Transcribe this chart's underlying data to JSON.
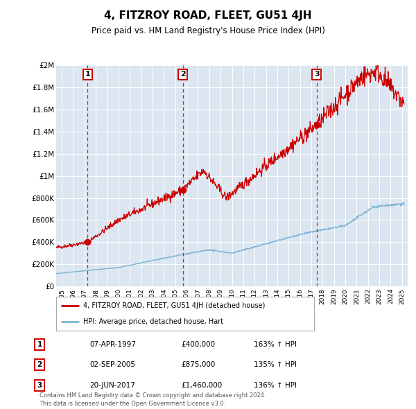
{
  "title": "4, FITZROY ROAD, FLEET, GU51 4JH",
  "subtitle": "Price paid vs. HM Land Registry's House Price Index (HPI)",
  "title_fontsize": 11,
  "subtitle_fontsize": 8.5,
  "background_color": "#ffffff",
  "plot_bg_color": "#dce6f1",
  "grid_color": "#ffffff",
  "ylim": [
    0,
    2000000
  ],
  "yticks": [
    0,
    200000,
    400000,
    600000,
    800000,
    1000000,
    1200000,
    1400000,
    1600000,
    1800000,
    2000000
  ],
  "ytick_labels": [
    "£0",
    "£200K",
    "£400K",
    "£600K",
    "£800K",
    "£1M",
    "£1.2M",
    "£1.4M",
    "£1.6M",
    "£1.8M",
    "£2M"
  ],
  "xlim_start": 1994.5,
  "xlim_end": 2025.5,
  "xtick_years": [
    1995,
    1996,
    1997,
    1998,
    1999,
    2000,
    2001,
    2002,
    2003,
    2004,
    2005,
    2006,
    2007,
    2008,
    2009,
    2010,
    2011,
    2012,
    2013,
    2014,
    2015,
    2016,
    2017,
    2018,
    2019,
    2020,
    2021,
    2022,
    2023,
    2024,
    2025
  ],
  "house_line_color": "#cc0000",
  "hpi_line_color": "#7fb3d3",
  "sale_points": [
    {
      "num": 1,
      "year": 1997.27,
      "price": 400000,
      "label": "1"
    },
    {
      "num": 2,
      "year": 2005.67,
      "price": 875000,
      "label": "2"
    },
    {
      "num": 3,
      "year": 2017.47,
      "price": 1460000,
      "label": "3"
    }
  ],
  "legend_house": "4, FITZROY ROAD, FLEET, GU51 4JH (detached house)",
  "legend_hpi": "HPI: Average price, detached house, Hart",
  "table_rows": [
    {
      "num": "1",
      "date": "07-APR-1997",
      "price": "£400,000",
      "hpi": "163% ↑ HPI"
    },
    {
      "num": "2",
      "date": "02-SEP-2005",
      "price": "£875,000",
      "hpi": "135% ↑ HPI"
    },
    {
      "num": "3",
      "date": "20-JUN-2017",
      "price": "£1,460,000",
      "hpi": "136% ↑ HPI"
    }
  ],
  "copyright_text": "Contains HM Land Registry data © Crown copyright and database right 2024.\nThis data is licensed under the Open Government Licence v3.0."
}
